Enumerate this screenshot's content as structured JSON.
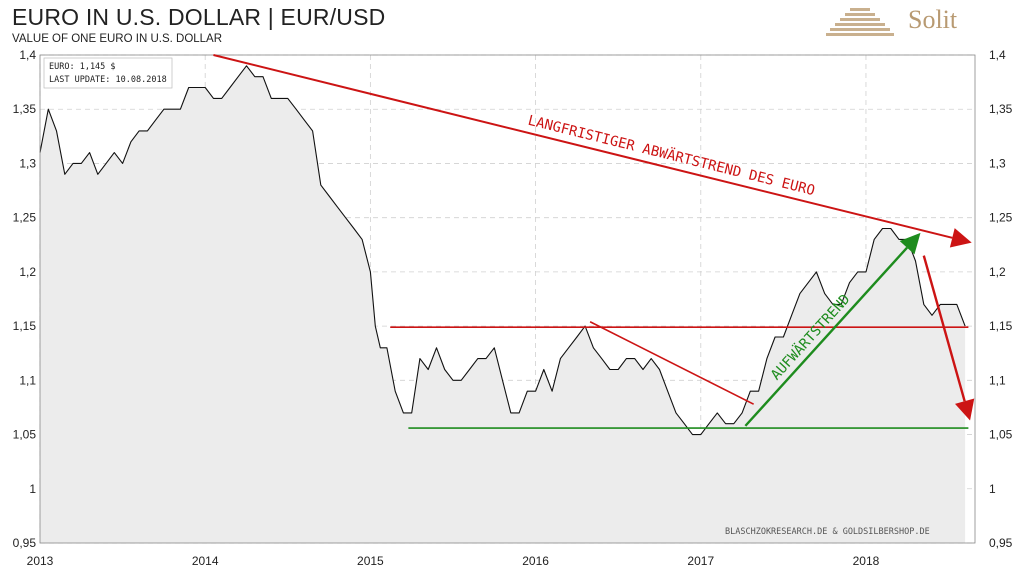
{
  "header": {
    "title": "EURO IN U.S. DOLLAR | EUR/USD",
    "subtitle": "VALUE OF ONE EURO IN U.S. DOLLAR",
    "brand": "Solit"
  },
  "info_box": {
    "line1": "EURO: 1,145 $",
    "line2": "LAST UPDATE: 10.08.2018"
  },
  "credit": "BLASCHZOKRESEARCH.DE & GOLDSILBERSHOP.DE",
  "colors": {
    "line": "#111111",
    "area": "#ececec",
    "downtrend": "#cc1414",
    "uptrend": "#1e8c1e",
    "brand": "#b89a72"
  },
  "chart_data": {
    "type": "line",
    "title": "EURO IN U.S. DOLLAR | EUR/USD",
    "subtitle": "VALUE OF ONE EURO IN U.S. DOLLAR",
    "xlabel": "",
    "ylabel": "",
    "xlim": [
      2013.0,
      2018.66
    ],
    "ylim": [
      0.95,
      1.4
    ],
    "x_ticks": [
      2013,
      2014,
      2015,
      2016,
      2017,
      2018
    ],
    "x_tick_labels": [
      "2013",
      "2014",
      "2015",
      "2016",
      "2017",
      "2018"
    ],
    "y_ticks": [
      0.95,
      1.0,
      1.05,
      1.1,
      1.15,
      1.2,
      1.25,
      1.3,
      1.35,
      1.4
    ],
    "y_tick_labels": [
      "0,95",
      "1",
      "1,05",
      "1,1",
      "1,15",
      "1,2",
      "1,25",
      "1,3",
      "1,35",
      "1,4"
    ],
    "grid": true,
    "series": [
      {
        "x": [
          2013.0,
          2013.05,
          2013.1,
          2013.15,
          2013.2,
          2013.25,
          2013.3,
          2013.35,
          2013.4,
          2013.45,
          2013.5,
          2013.55,
          2013.6,
          2013.65,
          2013.7,
          2013.75,
          2013.8,
          2013.85,
          2013.9,
          2013.95,
          2014.0,
          2014.05,
          2014.1,
          2014.15,
          2014.2,
          2014.25,
          2014.3,
          2014.35,
          2014.4,
          2014.45,
          2014.5,
          2014.55,
          2014.6,
          2014.65,
          2014.7,
          2014.75,
          2014.8,
          2014.85,
          2014.9,
          2014.95,
          2015.0,
          2015.03,
          2015.06,
          2015.1,
          2015.15,
          2015.2,
          2015.25,
          2015.3,
          2015.35,
          2015.4,
          2015.45,
          2015.5,
          2015.55,
          2015.6,
          2015.65,
          2015.7,
          2015.75,
          2015.8,
          2015.85,
          2015.9,
          2015.95,
          2016.0,
          2016.05,
          2016.1,
          2016.15,
          2016.2,
          2016.25,
          2016.3,
          2016.35,
          2016.4,
          2016.45,
          2016.5,
          2016.55,
          2016.6,
          2016.65,
          2016.7,
          2016.75,
          2016.8,
          2016.85,
          2016.9,
          2016.95,
          2017.0,
          2017.05,
          2017.1,
          2017.15,
          2017.2,
          2017.25,
          2017.3,
          2017.35,
          2017.4,
          2017.45,
          2017.5,
          2017.55,
          2017.6,
          2017.65,
          2017.7,
          2017.75,
          2017.8,
          2017.85,
          2017.9,
          2017.95,
          2018.0,
          2018.05,
          2018.1,
          2018.15,
          2018.2,
          2018.25,
          2018.3,
          2018.35,
          2018.4,
          2018.45,
          2018.5,
          2018.55,
          2018.6
        ],
        "y": [
          1.31,
          1.35,
          1.33,
          1.29,
          1.3,
          1.3,
          1.31,
          1.29,
          1.3,
          1.31,
          1.3,
          1.32,
          1.33,
          1.33,
          1.34,
          1.35,
          1.35,
          1.35,
          1.37,
          1.37,
          1.37,
          1.36,
          1.36,
          1.37,
          1.38,
          1.39,
          1.38,
          1.38,
          1.36,
          1.36,
          1.36,
          1.35,
          1.34,
          1.33,
          1.28,
          1.27,
          1.26,
          1.25,
          1.24,
          1.23,
          1.2,
          1.15,
          1.13,
          1.13,
          1.09,
          1.07,
          1.07,
          1.12,
          1.11,
          1.13,
          1.11,
          1.1,
          1.1,
          1.11,
          1.12,
          1.12,
          1.13,
          1.1,
          1.07,
          1.07,
          1.09,
          1.09,
          1.11,
          1.09,
          1.12,
          1.13,
          1.14,
          1.15,
          1.13,
          1.12,
          1.11,
          1.11,
          1.12,
          1.12,
          1.11,
          1.12,
          1.11,
          1.09,
          1.07,
          1.06,
          1.05,
          1.05,
          1.06,
          1.07,
          1.06,
          1.06,
          1.07,
          1.09,
          1.09,
          1.12,
          1.14,
          1.14,
          1.16,
          1.18,
          1.19,
          1.2,
          1.18,
          1.17,
          1.17,
          1.19,
          1.2,
          1.2,
          1.23,
          1.24,
          1.24,
          1.23,
          1.23,
          1.21,
          1.17,
          1.16,
          1.17,
          1.17,
          1.17,
          1.15
        ]
      }
    ],
    "annotations": [
      {
        "text": "LANGFRISTIGER ABWÄRTSTREND DES EURO",
        "color": "#cc1414",
        "from": [
          2014.05,
          1.4
        ],
        "to": [
          2018.64,
          1.227
        ]
      },
      {
        "text": "AUFWÄRTSTREND",
        "color": "#1e8c1e",
        "from": [
          2017.27,
          1.058
        ],
        "to": [
          2018.33,
          1.236
        ]
      },
      {
        "text": "",
        "color": "#cc1414",
        "from": [
          2018.35,
          1.215
        ],
        "to": [
          2018.63,
          1.063
        ]
      }
    ],
    "reference_lines": [
      {
        "type": "horizontal",
        "y": 1.149,
        "x_from": 2015.12,
        "x_to": 2018.62,
        "color": "#cc1414"
      },
      {
        "type": "horizontal",
        "y": 1.056,
        "x_from": 2015.23,
        "x_to": 2018.62,
        "color": "#1e8c1e"
      },
      {
        "type": "segment",
        "from": [
          2016.33,
          1.154
        ],
        "to": [
          2017.32,
          1.078
        ],
        "color": "#cc1414"
      }
    ]
  }
}
